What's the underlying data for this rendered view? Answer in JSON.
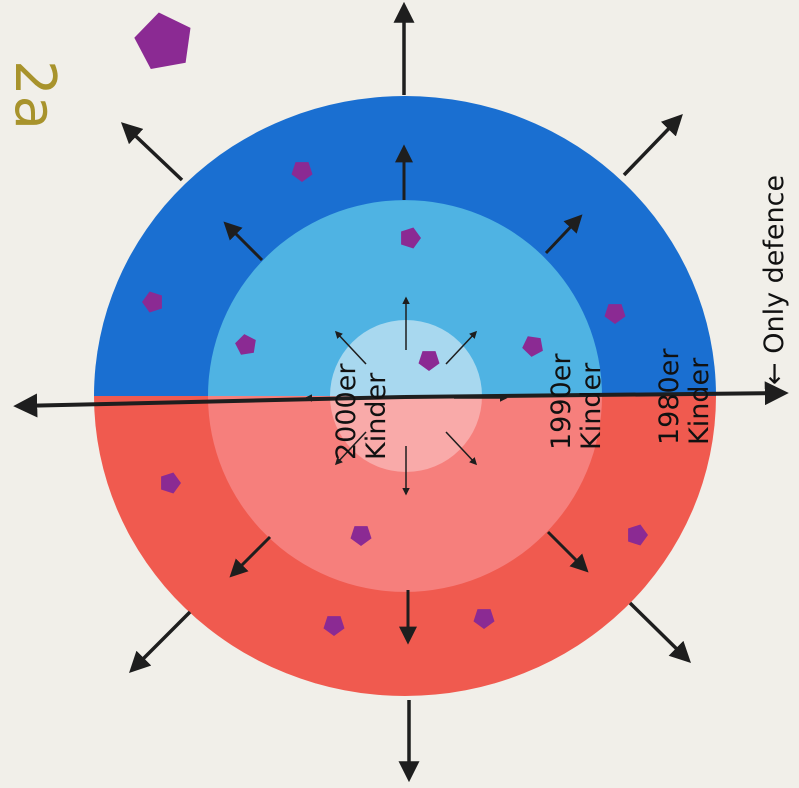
{
  "corner_mark": {
    "text": "2a",
    "color": "#a8932c"
  },
  "rings": [
    {
      "label_line1": "2000er",
      "label_line2": "Kinder"
    },
    {
      "label_line1": "1990er",
      "label_line2": "Kinder"
    },
    {
      "label_line1": "1980er",
      "label_line2": "Kinder"
    }
  ],
  "axis_label": "← Only defence",
  "colors": {
    "background": "#f1efe9",
    "top_outer": "#1a6fd1",
    "top_middle": "#4fb3e3",
    "top_inner": "#a8d8ef",
    "bottom_outer": "#f05a4f",
    "bottom_middle": "#f67f7c",
    "bottom_inner": "#f9aaa9",
    "pentagon": "#8b2a93",
    "arrow": "#1e1e1e"
  },
  "icons": {
    "marker": "pentagon-icon",
    "direction": "arrow-icon"
  }
}
